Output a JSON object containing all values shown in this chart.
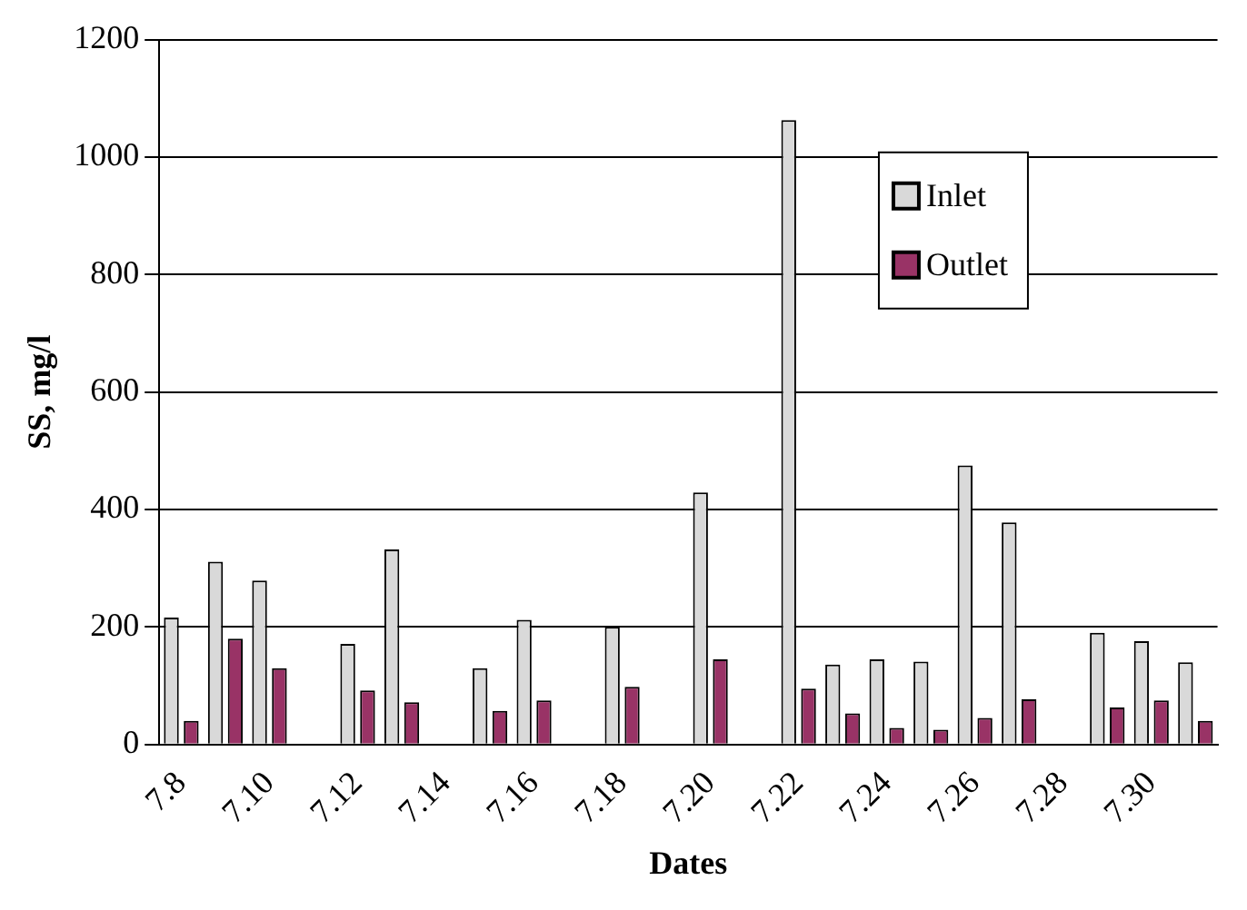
{
  "chart_data": {
    "type": "bar",
    "xlabel": "Dates",
    "ylabel": "SS, mg/l",
    "categories": [
      "7.8",
      null,
      "7.10",
      null,
      "7.12",
      null,
      "7.14",
      null,
      "7.16",
      null,
      "7.18",
      null,
      "7.20",
      null,
      "7.22",
      null,
      "7.24",
      null,
      "7.26",
      null,
      "7.28",
      null,
      "7.30",
      null
    ],
    "series": [
      {
        "name": "Inlet",
        "color": "#d9d9d9",
        "values": [
          216,
          311,
          279,
          null,
          171,
          332,
          null,
          130,
          212,
          null,
          200,
          null,
          429,
          null,
          1063,
          136,
          145,
          141,
          475,
          378,
          null,
          190,
          176,
          140
        ]
      },
      {
        "name": "Outlet",
        "color": "#993366",
        "values": [
          40,
          180,
          130,
          null,
          92,
          72,
          null,
          57,
          75,
          null,
          98,
          null,
          145,
          null,
          95,
          53,
          28,
          25,
          45,
          77,
          null,
          63,
          75,
          40
        ]
      }
    ],
    "ylim": [
      0,
      1200
    ],
    "yticks": [
      0,
      200,
      400,
      600,
      800,
      1000,
      1200
    ],
    "grid": "y",
    "legend": "top right"
  }
}
